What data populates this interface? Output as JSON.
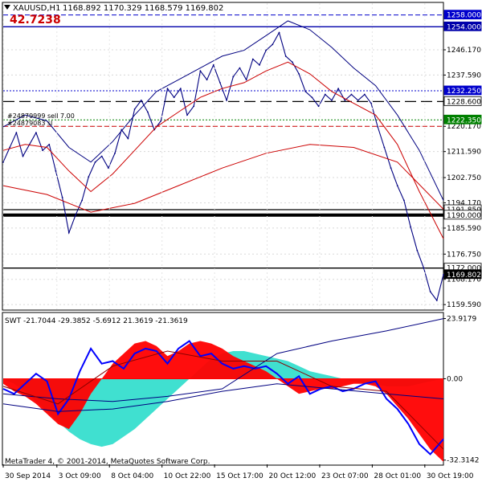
{
  "chart_data": [
    {
      "type": "line",
      "panel": "main",
      "symbol_label": "XAUUSD,H1",
      "ohlc_label": "1168.892 1170.329 1168.579 1169.802",
      "big_value": "42.7238",
      "ylim": [
        1158.0,
        1262.0
      ],
      "y_ticks": [
        "1246.170",
        "1237.590",
        "1220.170",
        "1211.590",
        "1202.750",
        "1194.170",
        "1185.590",
        "1176.750",
        "1168.170",
        "1159.590"
      ],
      "y_tick_values": [
        1246.17,
        1237.59,
        1220.17,
        1211.59,
        1202.75,
        1194.17,
        1185.59,
        1176.75,
        1168.17,
        1159.59
      ],
      "x_labels": [
        "30 Sep 2014",
        "3 Oct 09:00",
        "8 Oct 04:00",
        "10 Oct 22:00",
        "15 Oct 17:00",
        "20 Oct 12:00",
        "23 Oct 07:00",
        "28 Oct 01:00",
        "30 Oct 19:00"
      ],
      "x_positions": [
        0,
        49,
        97,
        145,
        193,
        241,
        289,
        337,
        385
      ],
      "price_line_labels": [
        {
          "label": "1258.000",
          "value": 1258.0,
          "style": "dash",
          "color": "#0000cc"
        },
        {
          "label": "1254.000",
          "value": 1254.0,
          "style": "solid",
          "color": "#0000aa"
        },
        {
          "label": "1232.250",
          "value": 1232.25,
          "style": "dot",
          "color": "#0000cc"
        },
        {
          "label": "1228.600",
          "value": 1228.6,
          "style": "longdash",
          "color": "#000000"
        },
        {
          "label": "1222.350",
          "value": 1222.35,
          "style": "dot",
          "color": "#008000"
        },
        {
          "label": "1191.850",
          "value": 1191.85,
          "style": "solid",
          "color": "#000000"
        },
        {
          "label": "1190.000",
          "value": 1190.0,
          "style": "thick",
          "color": "#000000"
        },
        {
          "label": "1172.000",
          "value": 1172.0,
          "style": "solid",
          "color": "#000000"
        },
        {
          "label": "1169.802",
          "value": 1169.802,
          "style": "current",
          "color": "#000000"
        }
      ],
      "unlabeled_lines": [
        {
          "value": 1220.17,
          "style": "dash",
          "color": "#cc0000"
        }
      ],
      "order_labels": [
        "#24879999 sell 7.00",
        "#24879083 sl"
      ],
      "series": [
        {
          "name": "",
          "color": "#000080",
          "x": [
            0,
            6,
            12,
            18,
            24,
            30,
            36,
            42,
            48,
            54,
            60,
            66,
            72,
            78,
            84,
            90,
            96,
            102,
            108,
            114,
            120,
            126,
            132,
            138,
            144,
            150,
            156,
            162,
            168,
            174,
            180,
            186,
            192,
            198,
            204,
            210,
            216,
            222,
            228,
            234,
            240,
            246,
            252,
            258,
            264,
            270,
            276,
            282,
            288,
            294,
            300,
            306,
            312,
            318,
            324,
            330,
            336,
            342,
            348,
            354,
            360,
            366,
            372,
            378,
            384,
            390,
            396,
            402
          ],
          "values": [
            1208,
            1213,
            1218,
            1210,
            1214,
            1218,
            1212,
            1214,
            1205,
            1196,
            1184,
            1190,
            1195,
            1203,
            1208,
            1210,
            1206,
            1211,
            1219,
            1216,
            1226,
            1229,
            1225,
            1219,
            1222,
            1233,
            1230,
            1233,
            1224,
            1227,
            1239,
            1236,
            1241,
            1235,
            1229,
            1237,
            1240,
            1236,
            1243,
            1241,
            1246,
            1248,
            1252,
            1244,
            1242,
            1238,
            1232,
            1230,
            1227,
            1231,
            1229,
            1233,
            1229,
            1231,
            1229,
            1231,
            1228,
            1220,
            1213,
            1206,
            1200,
            1195,
            1186,
            1178,
            1172,
            1164,
            1161,
            1169.8
          ]
        },
        {
          "name": "",
          "color": "#cc0000",
          "x": [
            0,
            20,
            40,
            60,
            80,
            100,
            120,
            140,
            160,
            180,
            200,
            220,
            240,
            260,
            280,
            300,
            320,
            340,
            360,
            380,
            402
          ],
          "values": [
            1212,
            1214,
            1213,
            1205,
            1198,
            1204,
            1212,
            1220,
            1225,
            1230,
            1233,
            1235,
            1239,
            1242,
            1238,
            1232,
            1228,
            1224,
            1214,
            1198,
            1182
          ]
        },
        {
          "name": "",
          "color": "#cc0000",
          "x": [
            0,
            40,
            80,
            120,
            160,
            200,
            240,
            280,
            320,
            360,
            402
          ],
          "values": [
            1200,
            1197,
            1191,
            1194,
            1200,
            1206,
            1211,
            1214,
            1213,
            1208,
            1192
          ]
        },
        {
          "name": "",
          "color": "#000080",
          "x": [
            0,
            20,
            40,
            60,
            80,
            100,
            120,
            140,
            160,
            180,
            200,
            220,
            240,
            260,
            280,
            300,
            320,
            340,
            360,
            380,
            402
          ],
          "values": [
            1220,
            1224,
            1222,
            1213,
            1208,
            1215,
            1224,
            1232,
            1236,
            1240,
            1244,
            1246,
            1251,
            1256,
            1253,
            1247,
            1240,
            1234,
            1224,
            1212,
            1195
          ]
        }
      ]
    },
    {
      "type": "area",
      "panel": "indicator",
      "indicator_label": "SWT -21.7044 -29.3852 -5.6912 21.3619 -21.3619",
      "ylim": [
        -34.0,
        26.0
      ],
      "y_ticks": [
        "23.9179",
        "0.00",
        "-32.3142"
      ],
      "y_tick_values": [
        23.9179,
        0.0,
        -32.3142
      ],
      "copyright": "MetaTrader 4, © 2001-2014, MetaQuotes Software Corp.",
      "histogram_red": {
        "color": "#ff0000",
        "x": [
          0,
          10,
          20,
          30,
          40,
          50,
          60,
          70,
          80,
          90,
          100,
          110,
          120,
          130,
          140,
          150,
          160,
          170,
          180,
          190,
          200,
          210,
          220,
          230,
          240,
          250,
          260,
          270,
          280,
          290,
          300,
          310,
          320,
          330,
          340,
          350,
          360,
          370,
          380,
          390,
          402
        ],
        "values": [
          -2,
          -5,
          -7,
          -10,
          -14,
          -18,
          -20,
          -14,
          -6,
          0,
          6,
          10,
          14,
          15,
          13,
          9,
          11,
          14,
          15,
          14,
          12,
          9,
          7,
          5,
          3,
          0,
          -3,
          -6,
          -5,
          -4,
          -4,
          -3,
          -2,
          -2,
          -3,
          -6,
          -11,
          -16,
          -22,
          -28,
          -33
        ]
      },
      "histogram_cyan": {
        "color": "#40e0d0",
        "x": [
          0,
          10,
          20,
          30,
          40,
          50,
          60,
          70,
          80,
          90,
          100,
          110,
          120,
          130,
          140,
          150,
          160,
          170,
          180,
          190,
          200,
          210,
          220,
          230,
          240,
          250,
          260,
          270,
          280,
          290,
          300,
          310,
          320,
          330,
          340,
          350,
          360,
          370,
          380,
          390,
          402
        ],
        "values": [
          0,
          -2,
          -5,
          -9,
          -13,
          -17,
          -21,
          -24,
          -26,
          -27,
          -26,
          -23,
          -20,
          -16,
          -12,
          -8,
          -4,
          0,
          4,
          8,
          10,
          11,
          11,
          10,
          9,
          8,
          7,
          5,
          3,
          2,
          1,
          0,
          -1,
          -2,
          -2,
          -3,
          -3,
          -3,
          -2,
          -1,
          0
        ]
      },
      "series": [
        {
          "name": "",
          "color": "#0000ff",
          "x": [
            0,
            10,
            20,
            30,
            40,
            50,
            60,
            70,
            80,
            90,
            100,
            110,
            120,
            130,
            140,
            150,
            160,
            170,
            180,
            190,
            200,
            210,
            220,
            230,
            240,
            250,
            260,
            270,
            280,
            290,
            300,
            310,
            320,
            330,
            340,
            350,
            360,
            370,
            380,
            390,
            402
          ],
          "values": [
            -4,
            -6,
            -2,
            2,
            -1,
            -14,
            -8,
            3,
            12,
            6,
            7,
            4,
            10,
            12,
            11,
            6,
            12,
            15,
            9,
            10,
            6,
            4,
            5,
            4,
            5,
            2,
            -2,
            1,
            -6,
            -4,
            -3,
            -5,
            -4,
            -2,
            -1,
            -8,
            -12,
            -18,
            -26,
            -30,
            -24
          ]
        },
        {
          "name": "",
          "color": "#000080",
          "x": [
            0,
            50,
            100,
            150,
            200,
            250,
            300,
            350,
            402
          ],
          "values": [
            -6,
            -8,
            -9,
            -7,
            -4,
            10,
            15,
            19,
            23.9
          ]
        },
        {
          "name": "",
          "color": "#000080",
          "x": [
            0,
            50,
            100,
            150,
            200,
            250,
            300,
            350,
            402
          ],
          "values": [
            -10,
            -13,
            -12,
            -9,
            -5,
            -2,
            -4,
            -6,
            -8
          ]
        },
        {
          "name": "",
          "color": "#8b0000",
          "x": [
            0,
            50,
            100,
            150,
            200,
            250,
            300,
            350,
            402
          ],
          "values": [
            -3,
            -10,
            5,
            11,
            7,
            7,
            -3,
            -5,
            -28
          ]
        }
      ]
    }
  ]
}
